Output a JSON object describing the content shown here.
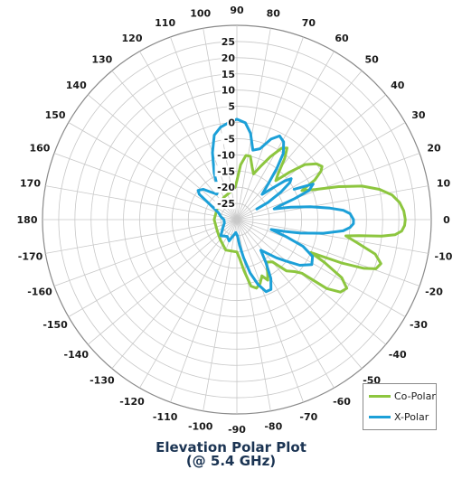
{
  "chart_data": {
    "type": "polar",
    "title": "Elevation Polar Plot",
    "subtitle": "(@ 5.4 GHz)",
    "angle_labels": [
      "0",
      "10",
      "20",
      "30",
      "40",
      "50",
      "60",
      "70",
      "80",
      "90",
      "100",
      "110",
      "120",
      "130",
      "140",
      "150",
      "160",
      "170",
      "180",
      "-170",
      "-160",
      "-150",
      "-140",
      "-130",
      "-120",
      "-110",
      "-100",
      "-90",
      "-80",
      "-70",
      "-60",
      "-50",
      "-40",
      "-30",
      "-20",
      "-10"
    ],
    "radial_tick_labels": [
      "25",
      "20",
      "15",
      "10",
      "5",
      "0",
      "-5",
      "-10",
      "-15",
      "-20",
      "-25"
    ],
    "rlim": [
      -30,
      30
    ],
    "grid": true,
    "legend_position": "bottom-right",
    "series": [
      {
        "name": "Co-Polar",
        "color": "#8dc63f",
        "points": [
          [
            0,
            22
          ],
          [
            -2,
            21.8
          ],
          [
            -4,
            21
          ],
          [
            -5.5,
            19
          ],
          [
            -6.5,
            15
          ],
          [
            -7.5,
            8
          ],
          [
            -8.5,
            4
          ],
          [
            -11,
            8
          ],
          [
            -14,
            14
          ],
          [
            -17,
            16.5
          ],
          [
            -19.5,
            15.5
          ],
          [
            -21,
            12
          ],
          [
            -22.5,
            5
          ],
          [
            -24,
            -5
          ],
          [
            -26,
            0
          ],
          [
            -29,
            7
          ],
          [
            -32,
            10
          ],
          [
            -35,
            9
          ],
          [
            -37.5,
            5
          ],
          [
            -39.5,
            -4
          ],
          [
            -42,
            -6
          ],
          [
            -46,
            -8
          ],
          [
            -50,
            -13
          ],
          [
            -55,
            -14
          ],
          [
            -60,
            -11
          ],
          [
            -63,
            -9
          ],
          [
            -66,
            -11
          ],
          [
            -70,
            -9
          ],
          [
            -74,
            -8
          ],
          [
            -78,
            -9
          ],
          [
            -82,
            -14
          ],
          [
            -86,
            -18
          ],
          [
            -90,
            -20
          ],
          [
            -110,
            -20
          ],
          [
            -130,
            -22
          ],
          [
            -150,
            -23
          ],
          [
            -180,
            -23
          ],
          [
            150,
            -23
          ],
          [
            120,
            -22
          ],
          [
            100,
            -21
          ],
          [
            93,
            -20
          ],
          [
            90,
            -18
          ],
          [
            86,
            -13
          ],
          [
            82,
            -10
          ],
          [
            78,
            -10
          ],
          [
            74,
            -13
          ],
          [
            70,
            -15
          ],
          [
            66,
            -12
          ],
          [
            62,
            -8
          ],
          [
            58,
            -4
          ],
          [
            55,
            -3
          ],
          [
            52,
            -6
          ],
          [
            48,
            -11
          ],
          [
            45,
            -13
          ],
          [
            42,
            -8
          ],
          [
            39,
            -3
          ],
          [
            35,
            0
          ],
          [
            32,
            1
          ],
          [
            30,
            0
          ],
          [
            27,
            -3
          ],
          [
            24,
            -8
          ],
          [
            21,
            -4
          ],
          [
            18,
            3
          ],
          [
            15,
            10
          ],
          [
            12,
            15
          ],
          [
            9,
            18.5
          ],
          [
            6,
            20.5
          ],
          [
            3,
            21.6
          ],
          [
            0,
            22
          ]
        ]
      },
      {
        "name": "X-Polar",
        "color": "#1ca0d8",
        "points": [
          [
            28,
            -10
          ],
          [
            25,
            -4
          ],
          [
            22,
            -6
          ],
          [
            20,
            -11
          ],
          [
            18,
            -16
          ],
          [
            16,
            -18
          ],
          [
            13,
            -13
          ],
          [
            10,
            -7
          ],
          [
            7,
            -1
          ],
          [
            5,
            3
          ],
          [
            3,
            5
          ],
          [
            0,
            6
          ],
          [
            -2,
            6
          ],
          [
            -4,
            5
          ],
          [
            -6,
            3
          ],
          [
            -9,
            -3
          ],
          [
            -12,
            -10
          ],
          [
            -14,
            -15
          ],
          [
            -16,
            -19
          ],
          [
            -19,
            -14
          ],
          [
            -22,
            -8
          ],
          [
            -26,
            -4
          ],
          [
            -31,
            -3
          ],
          [
            -36,
            -6
          ],
          [
            -40,
            -10
          ],
          [
            -44,
            -13
          ],
          [
            -48,
            -16
          ],
          [
            -52,
            -18
          ],
          [
            -56,
            -14
          ],
          [
            -60,
            -9
          ],
          [
            -64,
            -6
          ],
          [
            -68,
            -6
          ],
          [
            -72,
            -9
          ],
          [
            -76,
            -13
          ],
          [
            -80,
            -18
          ],
          [
            -84,
            -22
          ],
          [
            -88,
            -25
          ],
          [
            -95,
            -26
          ],
          [
            -110,
            -23
          ],
          [
            -120,
            -24
          ],
          [
            -135,
            -23
          ],
          [
            -150,
            -25
          ],
          [
            -165,
            -26
          ],
          [
            180,
            -26
          ],
          [
            170,
            -25
          ],
          [
            160,
            -24
          ],
          [
            150,
            -20
          ],
          [
            146,
            -16
          ],
          [
            143,
            -15
          ],
          [
            138,
            -16
          ],
          [
            134,
            -18
          ],
          [
            128,
            -20
          ],
          [
            122,
            -19
          ],
          [
            116,
            -14
          ],
          [
            110,
            -8
          ],
          [
            105,
            -3
          ],
          [
            100,
            -1
          ],
          [
            95,
            0
          ],
          [
            90,
            1
          ],
          [
            85,
            0
          ],
          [
            81,
            -3
          ],
          [
            77,
            -8
          ],
          [
            72,
            -7
          ],
          [
            67,
            -3
          ],
          [
            63,
            -1
          ],
          [
            59,
            -2
          ],
          [
            55,
            -5
          ],
          [
            52,
            -10
          ],
          [
            49,
            -15
          ],
          [
            45,
            -19
          ],
          [
            42,
            -16
          ],
          [
            39,
            -11
          ],
          [
            37,
            -9
          ],
          [
            35,
            -10
          ],
          [
            32,
            -14
          ],
          [
            29,
            -19
          ],
          [
            28,
            -23
          ]
        ]
      }
    ]
  }
}
